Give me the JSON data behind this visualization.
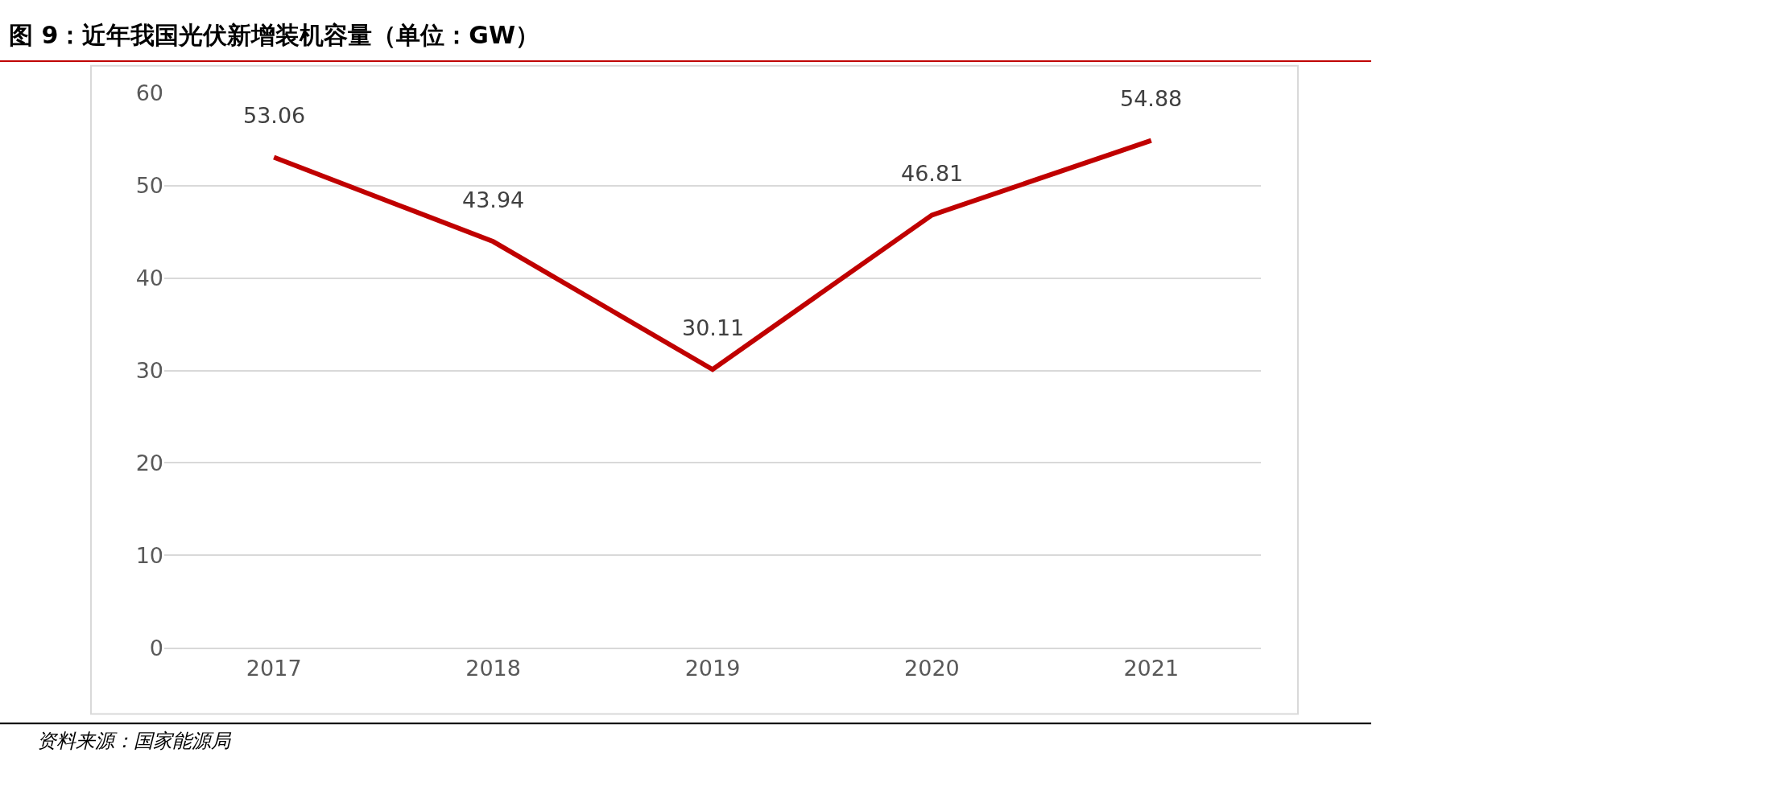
{
  "chart_data": {
    "type": "line",
    "title": "图 9：近年我国光伏新增装机容量（单位：GW）",
    "categories": [
      "2017",
      "2018",
      "2019",
      "2020",
      "2021"
    ],
    "series": [
      {
        "color": "#c00000",
        "values": [
          53.06,
          43.94,
          30.11,
          46.81,
          54.88
        ]
      }
    ],
    "ylim": [
      0,
      60
    ],
    "yticks": [
      0,
      10,
      20,
      30,
      40,
      50,
      60
    ],
    "grid": "y",
    "marker": "none",
    "line_style": "solid",
    "data_labels": true,
    "annotations": [
      "资料来源：国家能源局"
    ]
  }
}
